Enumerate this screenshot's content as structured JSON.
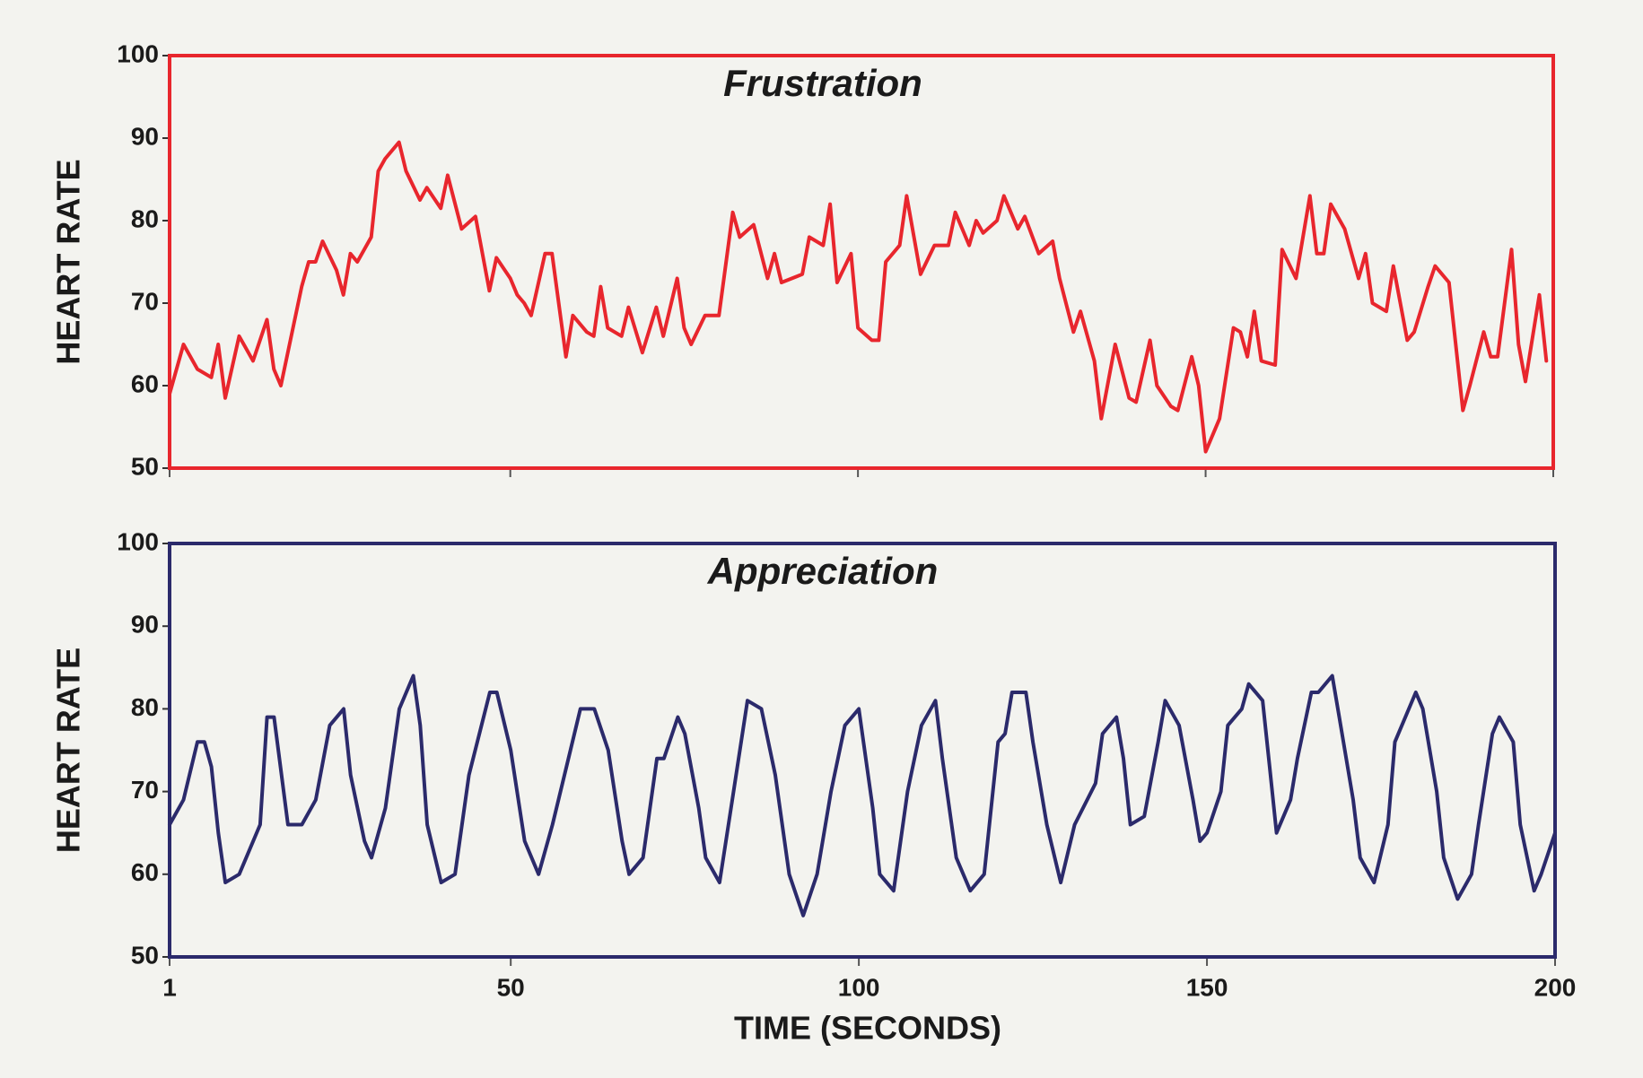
{
  "chart_data": [
    {
      "type": "line",
      "title": "Frustration",
      "y_label": "HEART RATE",
      "color": "#e8262d",
      "x": [
        1,
        3,
        5,
        7,
        8,
        9,
        11,
        13,
        15,
        16,
        17,
        20,
        21,
        22,
        23,
        25,
        26,
        27,
        28,
        30,
        31,
        32,
        34,
        35,
        37,
        38,
        40,
        41,
        43,
        45,
        47,
        48,
        50,
        51,
        52,
        53,
        55,
        56,
        58,
        59,
        61,
        62,
        63,
        64,
        66,
        67,
        69,
        71,
        72,
        74,
        75,
        76,
        78,
        80,
        82,
        83,
        85,
        87,
        88,
        89,
        92,
        93,
        95,
        96,
        97,
        99,
        100,
        102,
        103,
        104,
        106,
        107,
        109,
        111,
        113,
        114,
        116,
        117,
        118,
        120,
        121,
        123,
        124,
        126,
        128,
        129,
        131,
        132,
        134,
        135,
        137,
        139,
        140,
        142,
        143,
        145,
        146,
        148,
        149,
        150,
        152,
        154,
        155,
        156,
        157,
        158,
        160,
        161,
        163,
        165,
        166,
        167,
        168,
        170,
        172,
        173,
        174,
        176,
        177,
        179,
        180,
        182,
        183,
        185,
        187,
        188,
        190,
        191,
        192,
        194,
        195,
        196,
        198,
        199
      ],
      "values": [
        59,
        65,
        62,
        61,
        65,
        58.5,
        66,
        63,
        68,
        62,
        60,
        72,
        75,
        75,
        77.5,
        74,
        71,
        76,
        75,
        78,
        86,
        87.5,
        89.5,
        86,
        82.5,
        84,
        81.5,
        85.5,
        79,
        80.5,
        71.5,
        75.5,
        73,
        71,
        70,
        68.5,
        76,
        76,
        63.5,
        68.5,
        66.5,
        66,
        72,
        67,
        66,
        69.5,
        64,
        69.5,
        66,
        73,
        67,
        65,
        68.5,
        68.5,
        81,
        78,
        79.5,
        73,
        76,
        72.5,
        73.5,
        78,
        77,
        82,
        72.5,
        76,
        67,
        65.5,
        65.5,
        75,
        77,
        83,
        73.5,
        77,
        77,
        81,
        77,
        80,
        78.5,
        80,
        83,
        79,
        80.5,
        76,
        77.5,
        73,
        66.5,
        69,
        63,
        56,
        65,
        58.5,
        58,
        65.5,
        60,
        57.5,
        57,
        63.5,
        60,
        52,
        56,
        67,
        66.5,
        63.5,
        69,
        63,
        62.5,
        76.5,
        73,
        83,
        76,
        76,
        82,
        79,
        73,
        76,
        70,
        69,
        74.5,
        65.5,
        66.5,
        72,
        74.5,
        72.5,
        57,
        60,
        66.5,
        63.5,
        63.5,
        76.5,
        65,
        60.5,
        71,
        63
      ],
      "xlim": [
        1,
        200
      ],
      "xticks": [
        1,
        50,
        100,
        150,
        200
      ],
      "ylim": [
        50,
        100
      ],
      "yticks": [
        50,
        60,
        70,
        80,
        90,
        100
      ]
    },
    {
      "type": "line",
      "title": "Appreciation",
      "y_label": "HEART RATE",
      "x_label": "TIME (SECONDS)",
      "color": "#2b2a6b",
      "x": [
        1,
        3,
        5,
        6,
        7,
        8,
        9,
        11,
        14,
        15,
        16,
        18,
        20,
        22,
        24,
        26,
        27,
        29,
        30,
        32,
        34,
        36,
        37,
        38,
        40,
        42,
        44,
        47,
        48,
        50,
        52,
        54,
        56,
        58,
        60,
        62,
        64,
        66,
        67,
        69,
        71,
        72,
        74,
        75,
        77,
        78,
        80,
        82,
        84,
        86,
        88,
        90,
        92,
        94,
        96,
        98,
        100,
        102,
        103,
        105,
        107,
        109,
        111,
        112,
        114,
        116,
        118,
        120,
        121,
        122,
        124,
        125,
        127,
        129,
        131,
        134,
        135,
        137,
        138,
        139,
        141,
        143,
        144,
        146,
        148,
        149,
        150,
        152,
        153,
        155,
        156,
        158,
        159,
        160,
        162,
        163,
        165,
        166,
        168,
        169,
        171,
        172,
        174,
        176,
        177,
        180,
        181,
        183,
        184,
        186,
        188,
        189,
        191,
        192,
        194,
        195,
        197,
        198,
        200
      ],
      "values": [
        66,
        69,
        76,
        76,
        73,
        65,
        59,
        60,
        66,
        79,
        79,
        66,
        66,
        69,
        78,
        80,
        72,
        64,
        62,
        68,
        80,
        84,
        78,
        66,
        59,
        60,
        72,
        82,
        82,
        75,
        64,
        60,
        66,
        73,
        80,
        80,
        75,
        64,
        60,
        62,
        74,
        74,
        79,
        77,
        68,
        62,
        59,
        70,
        81,
        80,
        72,
        60,
        55,
        60,
        70,
        78,
        80,
        68,
        60,
        58,
        70,
        78,
        81,
        74,
        62,
        58,
        60,
        76,
        77,
        82,
        82,
        76,
        66,
        59,
        66,
        71,
        77,
        79,
        74,
        66,
        67,
        76,
        81,
        78,
        69,
        64,
        65,
        70,
        78,
        80,
        83,
        81,
        73,
        65,
        69,
        74,
        82,
        82,
        84,
        79,
        69,
        62,
        59,
        66,
        76,
        82,
        80,
        70,
        62,
        57,
        60,
        66,
        77,
        79,
        76,
        66,
        58,
        60,
        65
      ],
      "xlim": [
        1,
        200
      ],
      "xticks": [
        1,
        50,
        100,
        150,
        200
      ],
      "ylim": [
        50,
        100
      ],
      "yticks": [
        50,
        60,
        70,
        80,
        90,
        100
      ]
    }
  ]
}
